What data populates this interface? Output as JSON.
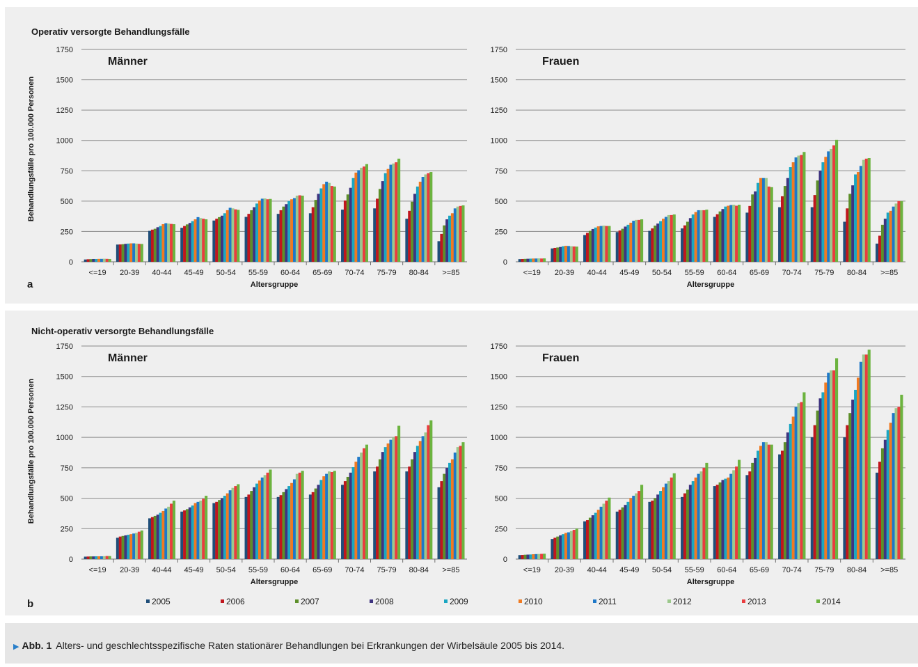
{
  "years": [
    "2005",
    "2006",
    "2007",
    "2008",
    "2009",
    "2010",
    "2011",
    "2012",
    "2013",
    "2014"
  ],
  "colors": [
    "#1f4e79",
    "#c0161e",
    "#5d8f2a",
    "#3f3480",
    "#1aa6c2",
    "#f07a21",
    "#1e78c8",
    "#9cc88c",
    "#ea3c3f",
    "#6cb33f"
  ],
  "panels": [
    {
      "title": "Operativ versorgte Behandlungsfälle",
      "letter": "a"
    },
    {
      "title": "Nicht-operativ versorgte Behandlungsfälle",
      "letter": "b"
    }
  ],
  "caption": {
    "label": "Abb. 1",
    "text": "Alters- und geschlechtsspezifische Raten stationärer Behandlungen bei Erkrankungen der Wirbelsäule 2005 bis 2014."
  },
  "chart_data": [
    {
      "type": "bar",
      "title": "Männer",
      "xlabel": "Altersgruppe",
      "ylabel": "Behandlungsfälle pro 100.000 Personen",
      "ylim": [
        0,
        1750
      ],
      "yticks": [
        0,
        250,
        500,
        750,
        1000,
        1250,
        1500,
        1750
      ],
      "categories": [
        "<=19",
        "20-39",
        "40-44",
        "45-49",
        "50-54",
        "55-59",
        "60-64",
        "65-69",
        "70-74",
        "75-79",
        "80-84",
        ">=85"
      ],
      "legend": [
        "2005",
        "2006",
        "2007",
        "2008",
        "2009",
        "2010",
        "2011",
        "2012",
        "2013",
        "2014"
      ],
      "values": [
        [
          19,
          21,
          22,
          23,
          23,
          24,
          24,
          25,
          24,
          23
        ],
        [
          142,
          143,
          145,
          148,
          150,
          152,
          152,
          150,
          148,
          147
        ],
        [
          255,
          265,
          272,
          285,
          295,
          310,
          318,
          315,
          312,
          310
        ],
        [
          280,
          295,
          308,
          320,
          335,
          350,
          368,
          360,
          355,
          350
        ],
        [
          340,
          355,
          368,
          380,
          400,
          425,
          445,
          440,
          432,
          428
        ],
        [
          370,
          395,
          425,
          450,
          480,
          505,
          520,
          522,
          515,
          518
        ],
        [
          395,
          425,
          455,
          475,
          500,
          515,
          525,
          545,
          548,
          545
        ],
        [
          400,
          450,
          510,
          560,
          605,
          640,
          660,
          650,
          625,
          620
        ],
        [
          430,
          505,
          555,
          610,
          690,
          735,
          755,
          775,
          785,
          805
        ],
        [
          440,
          520,
          600,
          665,
          730,
          765,
          800,
          810,
          820,
          850
        ],
        [
          355,
          420,
          495,
          560,
          620,
          660,
          700,
          720,
          730,
          740
        ],
        [
          170,
          230,
          300,
          350,
          380,
          400,
          440,
          455,
          460,
          465
        ]
      ]
    },
    {
      "type": "bar",
      "title": "Frauen",
      "xlabel": "Altersgruppe",
      "ylabel": "",
      "ylim": [
        0,
        1750
      ],
      "yticks": [
        0,
        250,
        500,
        750,
        1000,
        1250,
        1500,
        1750
      ],
      "categories": [
        "<=19",
        "20-39",
        "40-44",
        "45-49",
        "50-54",
        "55-59",
        "60-64",
        "65-69",
        "70-74",
        "75-79",
        "80-84",
        ">=85"
      ],
      "legend": [
        "2005",
        "2006",
        "2007",
        "2008",
        "2009",
        "2010",
        "2011",
        "2012",
        "2013",
        "2014"
      ],
      "values": [
        [
          22,
          23,
          24,
          25,
          26,
          27,
          27,
          28,
          27,
          28
        ],
        [
          110,
          115,
          118,
          122,
          128,
          132,
          130,
          128,
          126,
          125
        ],
        [
          220,
          238,
          255,
          270,
          282,
          292,
          295,
          298,
          295,
          295
        ],
        [
          245,
          258,
          272,
          290,
          305,
          322,
          338,
          345,
          345,
          350
        ],
        [
          255,
          275,
          298,
          315,
          335,
          355,
          370,
          385,
          385,
          390
        ],
        [
          275,
          300,
          330,
          360,
          390,
          410,
          425,
          425,
          425,
          430
        ],
        [
          370,
          392,
          415,
          435,
          455,
          462,
          468,
          470,
          462,
          470
        ],
        [
          405,
          460,
          555,
          580,
          650,
          690,
          690,
          690,
          620,
          615
        ],
        [
          450,
          540,
          625,
          690,
          780,
          820,
          860,
          875,
          880,
          905
        ],
        [
          450,
          550,
          670,
          750,
          820,
          865,
          910,
          930,
          960,
          1005
        ],
        [
          330,
          440,
          560,
          630,
          720,
          740,
          790,
          840,
          850,
          855
        ],
        [
          150,
          215,
          305,
          355,
          405,
          420,
          455,
          480,
          500,
          500
        ]
      ]
    },
    {
      "type": "bar",
      "title": "Männer",
      "xlabel": "Altersgruppe",
      "ylabel": "Behandlungsfälle pro 100.000 Personen",
      "ylim": [
        0,
        1750
      ],
      "yticks": [
        0,
        250,
        500,
        750,
        1000,
        1250,
        1500,
        1750
      ],
      "categories": [
        "<=19",
        "20-39",
        "40-44",
        "45-49",
        "50-54",
        "55-59",
        "60-64",
        "65-69",
        "70-74",
        "75-79",
        "80-84",
        ">=85"
      ],
      "legend": [
        "2005",
        "2006",
        "2007",
        "2008",
        "2009",
        "2010",
        "2011",
        "2012",
        "2013",
        "2014"
      ],
      "values": [
        [
          20,
          21,
          22,
          22,
          23,
          23,
          23,
          24,
          25,
          25
        ],
        [
          175,
          185,
          190,
          195,
          200,
          205,
          210,
          215,
          225,
          235
        ],
        [
          335,
          345,
          355,
          365,
          380,
          395,
          415,
          430,
          455,
          480
        ],
        [
          390,
          400,
          410,
          425,
          440,
          460,
          470,
          480,
          495,
          520
        ],
        [
          460,
          470,
          485,
          500,
          520,
          540,
          565,
          585,
          600,
          615
        ],
        [
          510,
          530,
          560,
          590,
          620,
          645,
          670,
          690,
          710,
          735
        ],
        [
          510,
          525,
          550,
          575,
          600,
          625,
          655,
          700,
          710,
          725
        ],
        [
          530,
          550,
          580,
          610,
          650,
          680,
          700,
          720,
          715,
          725
        ],
        [
          610,
          640,
          675,
          710,
          755,
          800,
          840,
          875,
          910,
          940
        ],
        [
          720,
          760,
          820,
          880,
          920,
          950,
          980,
          1000,
          1010,
          1095
        ],
        [
          720,
          760,
          820,
          880,
          930,
          970,
          1010,
          1040,
          1100,
          1140
        ],
        [
          590,
          640,
          700,
          750,
          790,
          820,
          875,
          920,
          930,
          960
        ]
      ]
    },
    {
      "type": "bar",
      "title": "Frauen",
      "xlabel": "Altersgruppe",
      "ylabel": "",
      "ylim": [
        0,
        1750
      ],
      "yticks": [
        0,
        250,
        500,
        750,
        1000,
        1250,
        1500,
        1750
      ],
      "categories": [
        "<=19",
        "20-39",
        "40-44",
        "45-49",
        "50-54",
        "55-59",
        "60-64",
        "65-69",
        "70-74",
        "75-79",
        "80-84",
        ">=85"
      ],
      "legend": [
        "2005",
        "2006",
        "2007",
        "2008",
        "2009",
        "2010",
        "2011",
        "2012",
        "2013",
        "2014"
      ],
      "values": [
        [
          33,
          34,
          36,
          37,
          38,
          40,
          41,
          42,
          43,
          44
        ],
        [
          165,
          175,
          185,
          195,
          205,
          215,
          220,
          230,
          240,
          250
        ],
        [
          310,
          320,
          340,
          360,
          380,
          405,
          430,
          455,
          480,
          505
        ],
        [
          390,
          405,
          425,
          445,
          470,
          500,
          520,
          540,
          560,
          610
        ],
        [
          470,
          480,
          500,
          530,
          560,
          590,
          620,
          640,
          670,
          705
        ],
        [
          510,
          540,
          570,
          610,
          640,
          670,
          700,
          720,
          750,
          790
        ],
        [
          600,
          610,
          630,
          650,
          660,
          670,
          700,
          730,
          760,
          815
        ],
        [
          690,
          720,
          790,
          830,
          890,
          930,
          960,
          960,
          940,
          940
        ],
        [
          860,
          890,
          960,
          1040,
          1110,
          1170,
          1250,
          1280,
          1290,
          1370
        ],
        [
          1000,
          1100,
          1220,
          1320,
          1370,
          1450,
          1530,
          1550,
          1550,
          1650
        ],
        [
          1000,
          1100,
          1200,
          1310,
          1390,
          1490,
          1620,
          1680,
          1680,
          1720
        ],
        [
          710,
          800,
          910,
          980,
          1060,
          1120,
          1200,
          1240,
          1250,
          1350
        ]
      ]
    }
  ]
}
